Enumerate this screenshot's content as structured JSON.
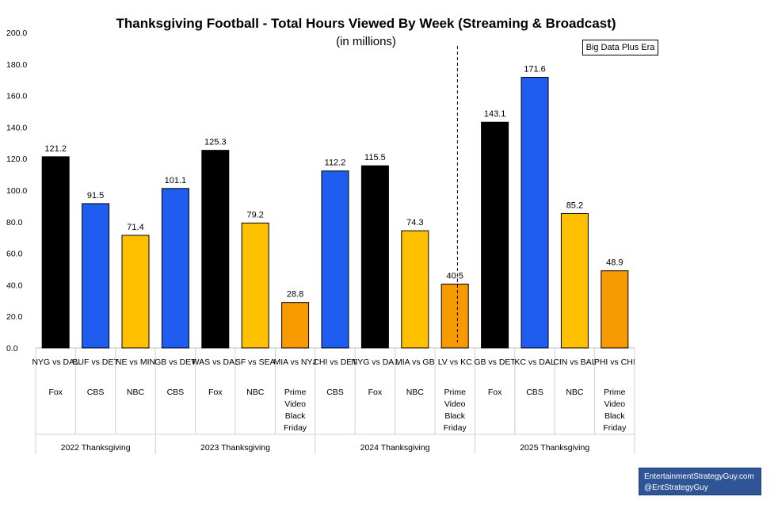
{
  "title": "Thanksgiving Football - Total Hours Viewed By Week (Streaming & Broadcast)",
  "subtitle": "(in millions)",
  "annotation": "Big Data Plus Era",
  "credit": {
    "line1": "EntertainmentStrategyGuy.com",
    "line2": "@EntStrategyGuy"
  },
  "colors": {
    "Fox": "#000000",
    "CBS": "#1f5cf0",
    "NBC": "#ffc000",
    "Prime Video Black Friday": "#f79a00",
    "credit_bg": "#2f5597"
  },
  "chart_data": {
    "type": "bar",
    "ylim": [
      0,
      200
    ],
    "yticks": [
      "0.0",
      "20.0",
      "40.0",
      "60.0",
      "80.0",
      "100.0",
      "120.0",
      "140.0",
      "160.0",
      "180.0",
      "200.0"
    ],
    "grid": false,
    "value_labels": true,
    "groups": [
      {
        "name": "2022 Thanksgiving",
        "bars": [
          {
            "game": "NYG vs DAL",
            "network": "Fox",
            "value": 121.2
          },
          {
            "game": "BUF vs DET",
            "network": "CBS",
            "value": 91.5
          },
          {
            "game": "NE vs MIN",
            "network": "NBC",
            "value": 71.4
          }
        ]
      },
      {
        "name": "2023 Thanksgiving",
        "bars": [
          {
            "game": "GB vs DET",
            "network": "CBS",
            "value": 101.1
          },
          {
            "game": "WAS vs DAL",
            "network": "Fox",
            "value": 125.3
          },
          {
            "game": "SF vs SEA",
            "network": "NBC",
            "value": 79.2
          },
          {
            "game": "MIA vs NYJ",
            "network": "Prime Video Black Friday",
            "value": 28.8
          }
        ]
      },
      {
        "name": "2024 Thanksgiving",
        "bars": [
          {
            "game": "CHI vs DET",
            "network": "CBS",
            "value": 112.2
          },
          {
            "game": "NYG vs DAL",
            "network": "Fox",
            "value": 115.5
          },
          {
            "game": "MIA vs GB",
            "network": "NBC",
            "value": 74.3
          },
          {
            "game": "LV vs KC",
            "network": "Prime Video Black Friday",
            "value": 40.5
          }
        ]
      },
      {
        "name": "2025 Thanksgiving",
        "bars": [
          {
            "game": "GB vs DET",
            "network": "Fox",
            "value": 143.1
          },
          {
            "game": "KC vs DAL",
            "network": "CBS",
            "value": 171.6
          },
          {
            "game": "CIN vs BAL",
            "network": "NBC",
            "value": 85.2
          },
          {
            "game": "PHI vs CHI",
            "network": "Prime Video Black Friday",
            "value": 48.9
          }
        ]
      }
    ]
  }
}
